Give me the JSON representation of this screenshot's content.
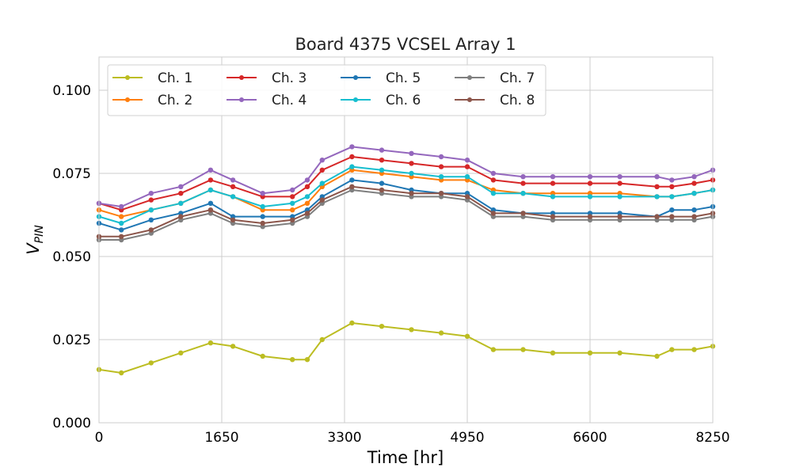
{
  "chart_data": {
    "type": "line",
    "title": "Board 4375 VCSEL Array 1",
    "xlabel": "Time [hr]",
    "ylabel_base": "V",
    "ylabel_sub": "PIN",
    "xlim": [
      0,
      8250
    ],
    "ylim": [
      0,
      0.11
    ],
    "xticks": [
      0,
      1650,
      3300,
      4950,
      6600,
      8250
    ],
    "xtick_labels": [
      "0",
      "1650",
      "3300",
      "4950",
      "6600",
      "8250"
    ],
    "yticks": [
      0.0,
      0.025,
      0.05,
      0.075,
      0.1
    ],
    "ytick_labels": [
      "0.000",
      "0.025",
      "0.050",
      "0.075",
      "0.100"
    ],
    "grid": true,
    "legend_position": "upper-left",
    "legend_columns": 4,
    "x": [
      0,
      300,
      700,
      1100,
      1500,
      1800,
      2200,
      2600,
      2800,
      3000,
      3400,
      3800,
      4200,
      4600,
      4950,
      5300,
      5700,
      6100,
      6600,
      7000,
      7500,
      7700,
      8000,
      8250
    ],
    "series": [
      {
        "name": "Ch. 1",
        "color": "#bcbd22",
        "values": [
          0.016,
          0.015,
          0.018,
          0.021,
          0.024,
          0.023,
          0.02,
          0.019,
          0.019,
          0.025,
          0.03,
          0.029,
          0.028,
          0.027,
          0.026,
          0.022,
          0.022,
          0.021,
          0.021,
          0.021,
          0.02,
          0.022,
          0.022,
          0.023
        ]
      },
      {
        "name": "Ch. 2",
        "color": "#ff7f0e",
        "values": [
          0.064,
          0.062,
          0.064,
          0.066,
          0.07,
          0.068,
          0.064,
          0.064,
          0.066,
          0.071,
          0.076,
          0.075,
          0.074,
          0.073,
          0.073,
          0.07,
          0.069,
          0.069,
          0.069,
          0.069,
          0.068,
          0.068,
          0.069,
          0.07
        ]
      },
      {
        "name": "Ch. 3",
        "color": "#d62728",
        "values": [
          0.066,
          0.064,
          0.067,
          0.069,
          0.073,
          0.071,
          0.068,
          0.068,
          0.071,
          0.076,
          0.08,
          0.079,
          0.078,
          0.077,
          0.077,
          0.073,
          0.072,
          0.072,
          0.072,
          0.072,
          0.071,
          0.071,
          0.072,
          0.073
        ]
      },
      {
        "name": "Ch. 4",
        "color": "#9467bd",
        "values": [
          0.066,
          0.065,
          0.069,
          0.071,
          0.076,
          0.073,
          0.069,
          0.07,
          0.073,
          0.079,
          0.083,
          0.082,
          0.081,
          0.08,
          0.079,
          0.075,
          0.074,
          0.074,
          0.074,
          0.074,
          0.074,
          0.073,
          0.074,
          0.076
        ]
      },
      {
        "name": "Ch. 5",
        "color": "#1f77b4",
        "values": [
          0.06,
          0.058,
          0.061,
          0.063,
          0.066,
          0.062,
          0.062,
          0.062,
          0.064,
          0.068,
          0.073,
          0.072,
          0.07,
          0.069,
          0.069,
          0.064,
          0.063,
          0.063,
          0.063,
          0.063,
          0.062,
          0.064,
          0.064,
          0.065
        ]
      },
      {
        "name": "Ch. 6",
        "color": "#17becf",
        "values": [
          0.062,
          0.06,
          0.064,
          0.066,
          0.07,
          0.068,
          0.065,
          0.066,
          0.068,
          0.072,
          0.077,
          0.076,
          0.075,
          0.074,
          0.074,
          0.069,
          0.069,
          0.068,
          0.068,
          0.068,
          0.068,
          0.068,
          0.069,
          0.07
        ]
      },
      {
        "name": "Ch. 7",
        "color": "#7f7f7f",
        "values": [
          0.055,
          0.055,
          0.057,
          0.061,
          0.063,
          0.06,
          0.059,
          0.06,
          0.062,
          0.066,
          0.07,
          0.069,
          0.068,
          0.068,
          0.067,
          0.062,
          0.062,
          0.061,
          0.061,
          0.061,
          0.061,
          0.061,
          0.061,
          0.062
        ]
      },
      {
        "name": "Ch. 8",
        "color": "#8c564b",
        "values": [
          0.056,
          0.056,
          0.058,
          0.062,
          0.064,
          0.061,
          0.06,
          0.061,
          0.063,
          0.067,
          0.071,
          0.07,
          0.069,
          0.069,
          0.068,
          0.063,
          0.063,
          0.062,
          0.062,
          0.062,
          0.062,
          0.062,
          0.062,
          0.063
        ]
      }
    ]
  }
}
